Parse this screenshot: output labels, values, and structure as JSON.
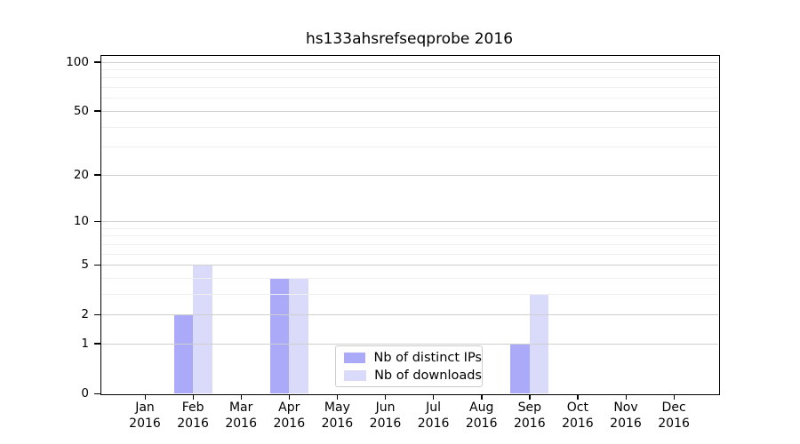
{
  "chart_data": {
    "type": "bar",
    "title": "hs133ahsrefseqprobe 2016",
    "xlabel": "",
    "ylabel": "",
    "categories": [
      "Jan",
      "Feb",
      "Mar",
      "Apr",
      "May",
      "Jun",
      "Jul",
      "Aug",
      "Sep",
      "Oct",
      "Nov",
      "Dec"
    ],
    "tick_year": "2016",
    "series": [
      {
        "name": "Nb of distinct IPs",
        "color": "#aaaaf8",
        "values": [
          0,
          2,
          0,
          4,
          0,
          0,
          0,
          0,
          1,
          0,
          0,
          0
        ]
      },
      {
        "name": "Nb of downloads",
        "color": "#dadafa",
        "values": [
          0,
          5,
          0,
          4,
          0,
          0,
          0,
          0,
          3,
          0,
          0,
          0
        ]
      }
    ],
    "yscale": "log1p",
    "ylim": [
      0,
      110
    ],
    "ytick_values": [
      0,
      1,
      2,
      5,
      10,
      20,
      50,
      100
    ],
    "ytick_labels": [
      "0",
      "1",
      "2",
      "5",
      "10",
      "20",
      "50",
      "100"
    ],
    "minor_ytick_values": [
      3,
      4,
      6,
      7,
      8,
      9,
      30,
      40,
      60,
      70,
      80,
      90
    ],
    "grid": "horizontal",
    "legend_position": "lower center",
    "colors": {
      "major_grid": "#cfcfcf",
      "minor_grid": "#efefef",
      "axis": "#000000",
      "background": "#ffffff"
    }
  }
}
